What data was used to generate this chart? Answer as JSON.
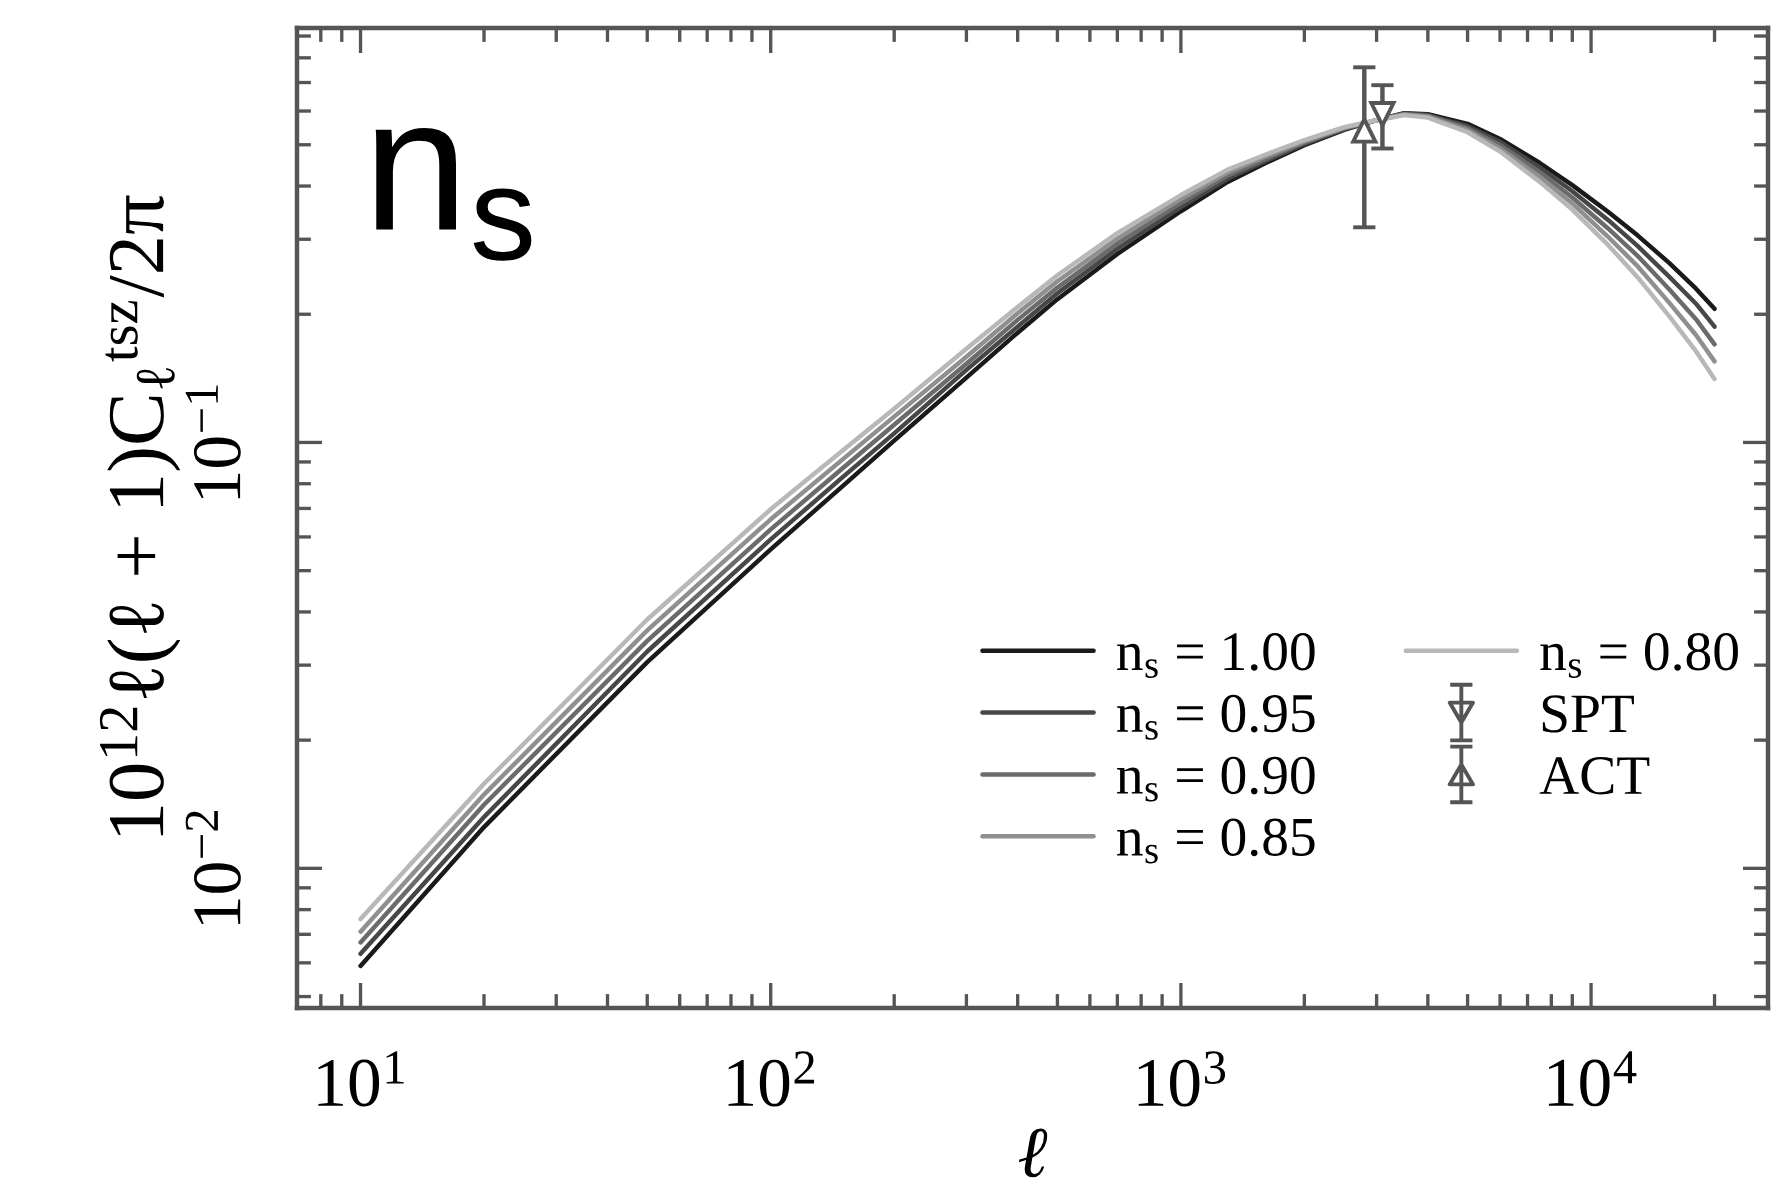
{
  "chart_data": {
    "type": "line",
    "xlabel": "ℓ",
    "ylabel": "10$^{12}$ℓ(ℓ + 1)C$_{ℓ}$$^{tsz}$/2π",
    "annotations": [
      "n$_{s}$"
    ],
    "log": "xy",
    "legend": "bottom right",
    "xlim": [
      7,
      27000
    ],
    "ylim": [
      0.0047,
      0.94
    ],
    "xticks": [
      {
        "value": 8,
        "label": null
      },
      {
        "value": 9,
        "label": null
      },
      {
        "value": 10,
        "label": "10$^{1}$"
      },
      {
        "value": 20,
        "label": null
      },
      {
        "value": 30,
        "label": null
      },
      {
        "value": 40,
        "label": null
      },
      {
        "value": 50,
        "label": null
      },
      {
        "value": 60,
        "label": null
      },
      {
        "value": 70,
        "label": null
      },
      {
        "value": 80,
        "label": null
      },
      {
        "value": 90,
        "label": null
      },
      {
        "value": 100,
        "label": "10$^{2}$"
      },
      {
        "value": 200,
        "label": null
      },
      {
        "value": 300,
        "label": null
      },
      {
        "value": 400,
        "label": null
      },
      {
        "value": 500,
        "label": null
      },
      {
        "value": 600,
        "label": null
      },
      {
        "value": 700,
        "label": null
      },
      {
        "value": 800,
        "label": null
      },
      {
        "value": 900,
        "label": null
      },
      {
        "value": 1000,
        "label": "10$^{3}$"
      },
      {
        "value": 2000,
        "label": null
      },
      {
        "value": 3000,
        "label": null
      },
      {
        "value": 4000,
        "label": null
      },
      {
        "value": 5000,
        "label": null
      },
      {
        "value": 6000,
        "label": null
      },
      {
        "value": 7000,
        "label": null
      },
      {
        "value": 8000,
        "label": null
      },
      {
        "value": 9000,
        "label": null
      },
      {
        "value": 10000,
        "label": "10$^{4}$"
      },
      {
        "value": 20000,
        "label": null
      }
    ],
    "yticks": [
      {
        "value": 0.005,
        "label": null
      },
      {
        "value": 0.006,
        "label": null
      },
      {
        "value": 0.007,
        "label": null
      },
      {
        "value": 0.008,
        "label": null
      },
      {
        "value": 0.009,
        "label": null
      },
      {
        "value": 0.01,
        "label": "10$^{−2}$"
      },
      {
        "value": 0.02,
        "label": null
      },
      {
        "value": 0.03,
        "label": null
      },
      {
        "value": 0.04,
        "label": null
      },
      {
        "value": 0.05,
        "label": null
      },
      {
        "value": 0.06,
        "label": null
      },
      {
        "value": 0.07,
        "label": null
      },
      {
        "value": 0.08,
        "label": null
      },
      {
        "value": 0.09,
        "label": null
      },
      {
        "value": 0.1,
        "label": "10$^{−1}$"
      },
      {
        "value": 0.2,
        "label": null
      },
      {
        "value": 0.3,
        "label": null
      },
      {
        "value": 0.4,
        "label": null
      },
      {
        "value": 0.5,
        "label": null
      },
      {
        "value": 0.6,
        "label": null
      },
      {
        "value": 0.7,
        "label": null
      },
      {
        "value": 0.8,
        "label": null
      },
      {
        "value": 0.9,
        "label": null
      }
    ],
    "x": [
      10,
      20,
      50,
      100,
      150,
      200,
      300,
      400,
      500,
      700,
      1000,
      1300,
      1600,
      2000,
      2500,
      3000,
      3500,
      4000,
      5000,
      6000,
      7500,
      9000,
      11000,
      13000,
      15500,
      18000,
      20000
    ],
    "series": [
      {
        "name": "n$_{s}$ = 1.00",
        "color": "#1a1a1a",
        "values": [
          0.0059,
          0.0125,
          0.0305,
          0.0561,
          0.0791,
          0.101,
          0.142,
          0.181,
          0.217,
          0.277,
          0.349,
          0.409,
          0.452,
          0.499,
          0.542,
          0.571,
          0.593,
          0.59,
          0.56,
          0.516,
          0.453,
          0.402,
          0.348,
          0.306,
          0.264,
          0.23,
          0.206
        ]
      },
      {
        "name": "n$_{s}$ = 0.95",
        "color": "#474747",
        "values": [
          0.0063,
          0.0132,
          0.0323,
          0.0592,
          0.083,
          0.105,
          0.148,
          0.187,
          0.224,
          0.285,
          0.357,
          0.416,
          0.457,
          0.502,
          0.544,
          0.571,
          0.592,
          0.587,
          0.553,
          0.508,
          0.442,
          0.389,
          0.333,
          0.289,
          0.245,
          0.212,
          0.187
        ]
      },
      {
        "name": "n$_{s}$ = 0.90",
        "color": "#6b6b6b",
        "values": [
          0.0067,
          0.0141,
          0.0342,
          0.0625,
          0.0871,
          0.11,
          0.153,
          0.194,
          0.231,
          0.293,
          0.365,
          0.423,
          0.462,
          0.506,
          0.546,
          0.571,
          0.59,
          0.585,
          0.547,
          0.499,
          0.431,
          0.376,
          0.318,
          0.274,
          0.229,
          0.195,
          0.17
        ]
      },
      {
        "name": "n$_{s}$ = 0.85",
        "color": "#8f8f8f",
        "values": [
          0.0071,
          0.0149,
          0.0362,
          0.066,
          0.0914,
          0.115,
          0.159,
          0.201,
          0.239,
          0.301,
          0.373,
          0.43,
          0.468,
          0.509,
          0.548,
          0.571,
          0.589,
          0.582,
          0.541,
          0.49,
          0.42,
          0.364,
          0.304,
          0.259,
          0.213,
          0.179,
          0.155
        ]
      },
      {
        "name": "n$_{s}$ = 0.80",
        "color": "#b8b8b8",
        "values": [
          0.0076,
          0.0158,
          0.0384,
          0.0697,
          0.0959,
          0.12,
          0.166,
          0.208,
          0.247,
          0.31,
          0.381,
          0.437,
          0.473,
          0.513,
          0.55,
          0.571,
          0.587,
          0.579,
          0.535,
          0.482,
          0.409,
          0.352,
          0.291,
          0.244,
          0.198,
          0.164,
          0.141
        ]
      },
      {
        "name": "SPT",
        "type": "scatter",
        "marker": "triangle_down",
        "color": "#555555",
        "x": [
          3100
        ],
        "values": [
          0.59
        ],
        "errors": [
          0.1
        ]
      },
      {
        "name": "ACT",
        "type": "scatter",
        "marker": "triangle",
        "color": "#555555",
        "x": [
          2800
        ],
        "values": [
          0.54
        ],
        "errors": [
          0.22
        ]
      }
    ]
  }
}
